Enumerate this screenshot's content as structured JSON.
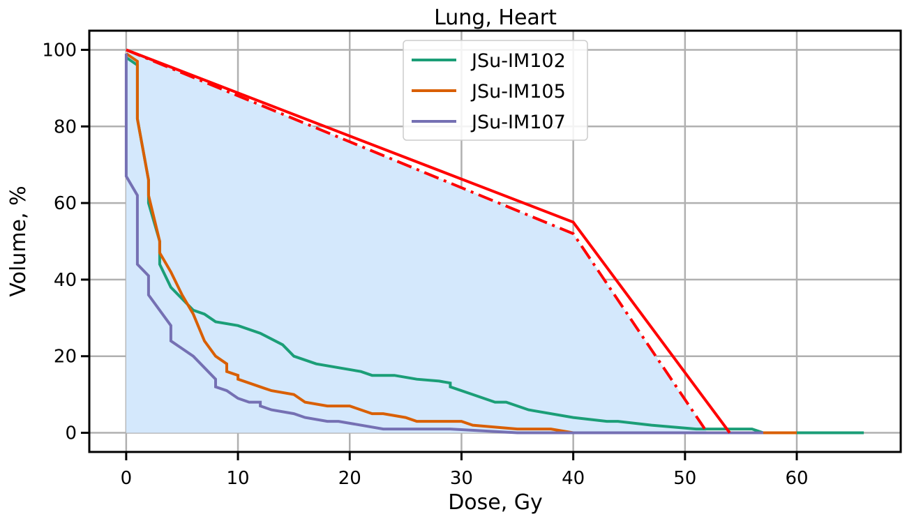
{
  "chart_data": {
    "type": "line",
    "title": "Lung, Heart",
    "xlabel": "Dose, Gy",
    "ylabel": "Volume, %",
    "xlim": [
      -3.3,
      69.3
    ],
    "ylim": [
      -5,
      105
    ],
    "xticks": [
      0,
      10,
      20,
      30,
      40,
      50,
      60
    ],
    "yticks": [
      0,
      20,
      40,
      60,
      80,
      100
    ],
    "grid": true,
    "legend_position": "top-center",
    "series": [
      {
        "name": "JSu-IM102",
        "color": "#1b9e77",
        "x": [
          0,
          1,
          1,
          2,
          2,
          3,
          3,
          4,
          5,
          6,
          7,
          8,
          10,
          12,
          14,
          15,
          17,
          19,
          21,
          22,
          24,
          26,
          28,
          29,
          29,
          31,
          33,
          34,
          36,
          40,
          43,
          44,
          47,
          51,
          56,
          57,
          66
        ],
        "y": [
          98,
          96,
          82,
          66,
          60,
          50,
          44,
          38,
          35,
          32,
          31,
          29,
          28,
          26,
          23,
          20,
          18,
          17,
          16,
          15,
          15,
          14,
          13.5,
          13,
          12,
          10,
          8,
          8,
          6,
          4,
          3,
          3,
          2,
          1,
          1,
          0,
          0
        ]
      },
      {
        "name": "JSu-IM105",
        "color": "#d95f02",
        "x": [
          0,
          1,
          1,
          2,
          2,
          3,
          3,
          4,
          5,
          6,
          7,
          8,
          9,
          9,
          10,
          10,
          12,
          13,
          15,
          16,
          18,
          20,
          22,
          23,
          25,
          26,
          30,
          31,
          35,
          38,
          40,
          60
        ],
        "y": [
          99,
          97,
          82,
          66,
          62,
          50,
          47,
          42,
          36,
          31,
          24,
          20,
          18,
          16,
          15,
          14,
          12,
          11,
          10,
          8,
          7,
          7,
          5,
          5,
          4,
          3,
          3,
          2,
          1,
          1,
          0,
          0
        ]
      },
      {
        "name": "JSu-IM107",
        "color": "#7570b3",
        "x": [
          0,
          0,
          1,
          1,
          2,
          2,
          4,
          4,
          6,
          7,
          8,
          8,
          9,
          10,
          11,
          12,
          12,
          13,
          15,
          16,
          18,
          19,
          23,
          29,
          35,
          57
        ],
        "y": [
          99,
          67,
          62,
          44,
          41,
          36,
          28,
          24,
          20,
          17,
          14,
          12,
          11,
          9,
          8,
          8,
          7,
          6,
          5,
          4,
          3,
          3,
          1,
          1,
          0,
          0
        ]
      }
    ],
    "constraint_lines": [
      {
        "color": "#ff0000",
        "style": "solid",
        "x": [
          0,
          40,
          54
        ],
        "y": [
          100,
          55,
          0
        ]
      },
      {
        "color": "#ff0000",
        "style": "dashdot",
        "x": [
          0,
          40,
          52
        ],
        "y": [
          100,
          52,
          0
        ]
      }
    ],
    "shaded_region": {
      "color": "#d4e8fc",
      "x": [
        0,
        40,
        52,
        0
      ],
      "y": [
        100,
        52,
        0,
        0
      ]
    }
  }
}
